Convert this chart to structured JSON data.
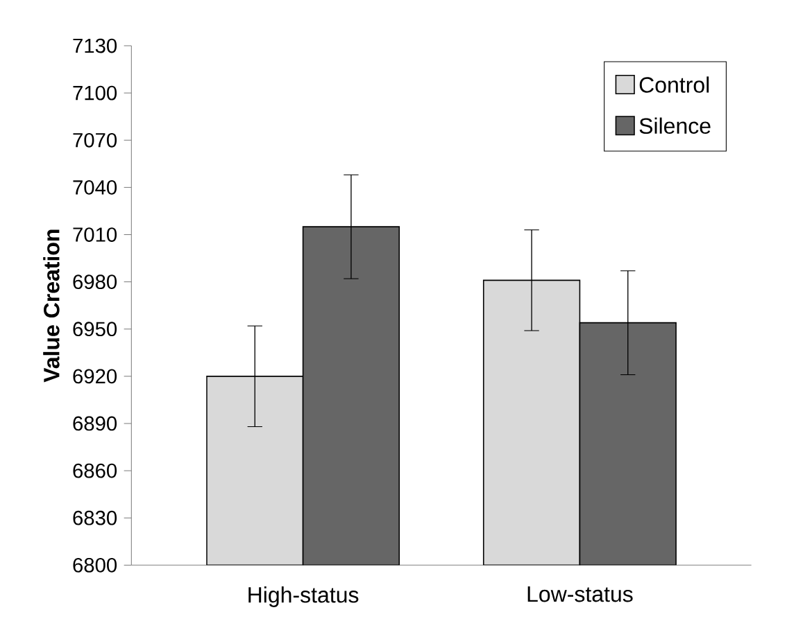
{
  "chart_data": {
    "type": "bar",
    "ylabel": "Value Creation",
    "categories": [
      "High-status",
      "Low-status"
    ],
    "series": [
      {
        "name": "Control",
        "color": "#d9d9d9",
        "values": [
          6920,
          6981
        ],
        "errors": [
          32,
          32
        ]
      },
      {
        "name": "Silence",
        "color": "#666666",
        "values": [
          7015,
          6954
        ],
        "errors": [
          33,
          33
        ]
      }
    ],
    "ylim": [
      6800,
      7130
    ],
    "yticks": [
      6800,
      6830,
      6860,
      6890,
      6920,
      6950,
      6980,
      7010,
      7040,
      7070,
      7100,
      7130
    ],
    "grid": false,
    "legend": "top right"
  }
}
